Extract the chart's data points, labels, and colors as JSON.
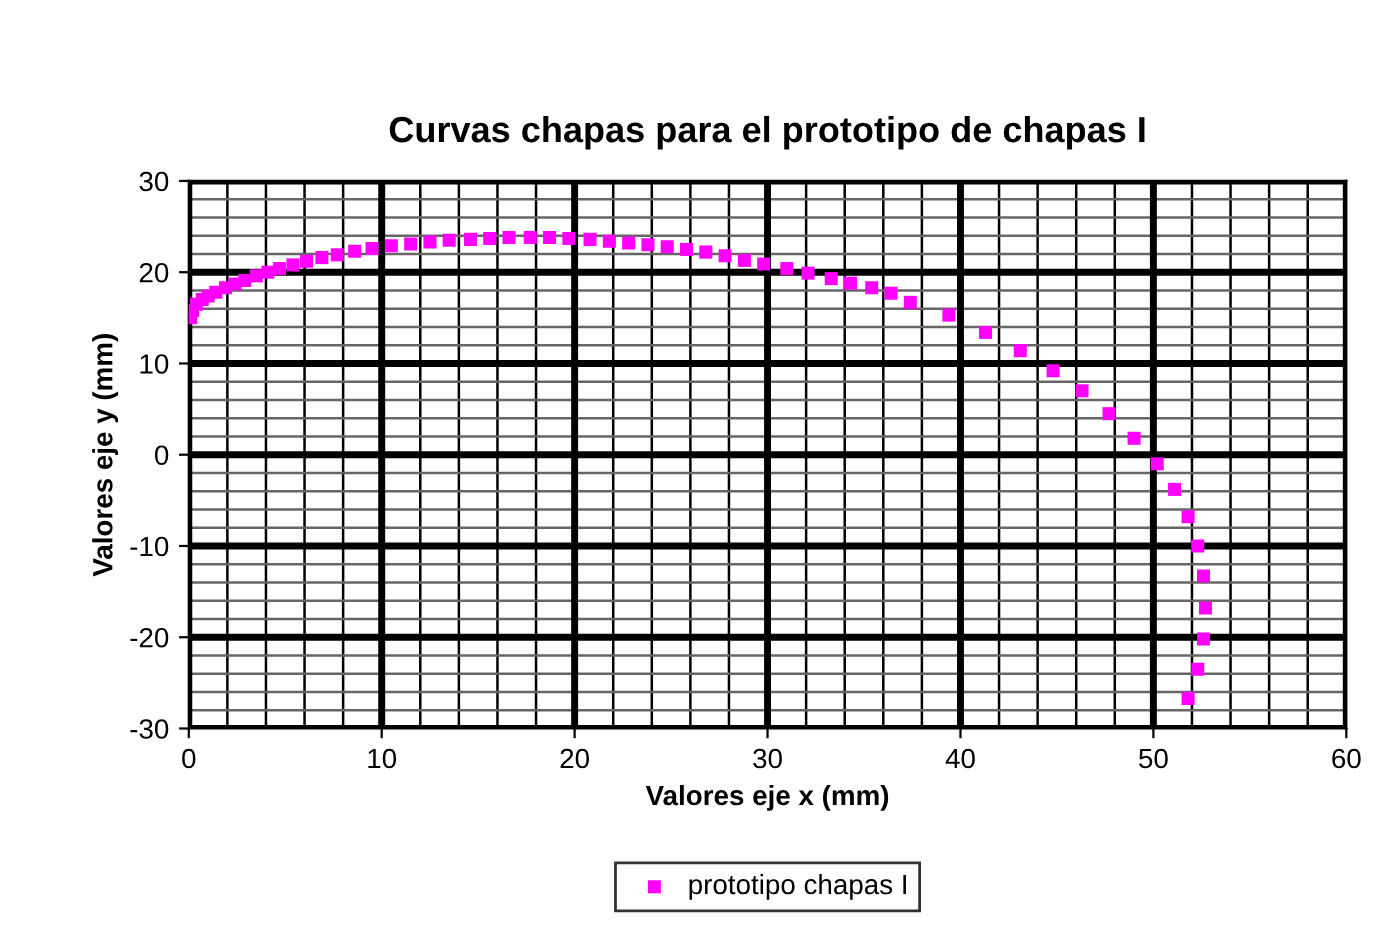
{
  "chart_data": {
    "type": "scatter",
    "title": "Curvas chapas para el prototipo de chapas I",
    "xlabel": "Valores eje x (mm)",
    "ylabel": "Valores eje y (mm)",
    "xlim": [
      0,
      60
    ],
    "ylim": [
      -30,
      30
    ],
    "xticks": [
      0,
      10,
      20,
      30,
      40,
      50,
      60
    ],
    "yticks": [
      -30,
      -20,
      -10,
      0,
      10,
      20,
      30
    ],
    "grid": true,
    "legend": "bottom",
    "marker": "square",
    "series": [
      {
        "name": "prototipo chapas I",
        "color": "#ff00ff",
        "x": [
          0.1,
          0.2,
          0.4,
          0.7,
          1.0,
          1.4,
          1.9,
          2.4,
          2.9,
          3.5,
          4.1,
          4.7,
          5.4,
          6.1,
          6.9,
          7.7,
          8.6,
          9.5,
          10.5,
          11.5,
          12.5,
          13.5,
          14.6,
          15.6,
          16.6,
          17.7,
          18.7,
          19.7,
          20.8,
          21.8,
          22.8,
          23.8,
          24.8,
          25.8,
          26.8,
          27.8,
          28.8,
          29.8,
          31.0,
          32.1,
          33.3,
          34.3,
          35.4,
          36.4,
          37.4,
          39.4,
          41.3,
          43.1,
          44.8,
          46.3,
          47.7,
          49.0,
          50.2,
          51.1,
          51.8,
          52.3,
          52.6,
          52.7,
          52.6,
          52.3,
          51.8
        ],
        "values": [
          15.0,
          15.8,
          16.5,
          17.0,
          17.4,
          17.8,
          18.3,
          18.7,
          19.1,
          19.6,
          20.0,
          20.4,
          20.8,
          21.2,
          21.6,
          21.9,
          22.3,
          22.6,
          22.9,
          23.1,
          23.3,
          23.5,
          23.6,
          23.7,
          23.8,
          23.8,
          23.8,
          23.7,
          23.6,
          23.4,
          23.2,
          23.0,
          22.8,
          22.5,
          22.2,
          21.8,
          21.3,
          20.9,
          20.4,
          19.9,
          19.3,
          18.8,
          18.3,
          17.7,
          16.7,
          15.3,
          13.4,
          11.4,
          9.2,
          7.0,
          4.5,
          1.8,
          -1.0,
          -3.8,
          -6.8,
          -10.0,
          -13.3,
          -16.8,
          -20.2,
          -23.5,
          -26.7
        ]
      }
    ]
  }
}
